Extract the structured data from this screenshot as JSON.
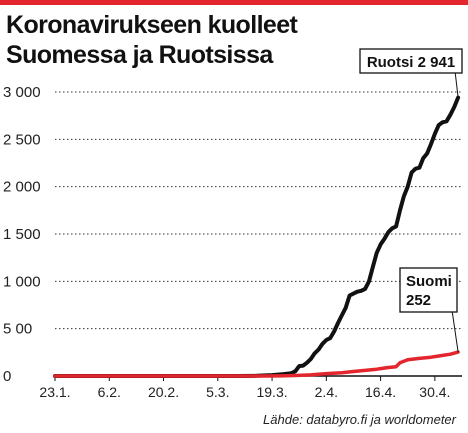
{
  "title_lines": [
    "Koronavirukseen kuolleet",
    "Suomessa ja Ruotsissa"
  ],
  "source": "Lähde: databyro.fi ja worldometer",
  "colors": {
    "accent_bar": "#e3262d"
  },
  "chart_data": {
    "type": "line",
    "title": "Koronavirukseen kuolleet Suomessa ja Ruotsissa",
    "xlabel": "",
    "ylabel": "",
    "ylim": [
      0,
      3000
    ],
    "y_ticks": [
      0,
      500,
      1000,
      1500,
      2000,
      2500,
      3000
    ],
    "y_tick_labels": [
      "0",
      "5 00",
      "1 000",
      "1 500",
      "2 000",
      "2 500",
      "3 000"
    ],
    "x_tick_labels": [
      "23.1.",
      "6.2.",
      "20.2.",
      "5.3.",
      "19.3.",
      "2.4.",
      "16.4.",
      "30.4."
    ],
    "x_tick_dates": [
      "2020-01-23",
      "2020-02-06",
      "2020-02-20",
      "2020-03-05",
      "2020-03-19",
      "2020-04-02",
      "2020-04-16",
      "2020-04-30"
    ],
    "xlim": [
      "2020-01-23",
      "2020-05-07"
    ],
    "grid": "horizontal dotted",
    "series": [
      {
        "name": "Ruotsi",
        "color": "#111111",
        "end_label": "Ruotsi 2 941",
        "points": [
          [
            "2020-01-23",
            0
          ],
          [
            "2020-03-10",
            0
          ],
          [
            "2020-03-15",
            2
          ],
          [
            "2020-03-19",
            10
          ],
          [
            "2020-03-22",
            20
          ],
          [
            "2020-03-24",
            30
          ],
          [
            "2020-03-25",
            50
          ],
          [
            "2020-03-26",
            105
          ],
          [
            "2020-03-27",
            110
          ],
          [
            "2020-03-28",
            140
          ],
          [
            "2020-03-29",
            180
          ],
          [
            "2020-03-30",
            240
          ],
          [
            "2020-03-31",
            280
          ],
          [
            "2020-04-01",
            340
          ],
          [
            "2020-04-02",
            380
          ],
          [
            "2020-04-03",
            400
          ],
          [
            "2020-04-04",
            470
          ],
          [
            "2020-04-05",
            560
          ],
          [
            "2020-04-06",
            640
          ],
          [
            "2020-04-07",
            720
          ],
          [
            "2020-04-08",
            850
          ],
          [
            "2020-04-09",
            870
          ],
          [
            "2020-04-10",
            890
          ],
          [
            "2020-04-11",
            900
          ],
          [
            "2020-04-12",
            920
          ],
          [
            "2020-04-13",
            1000
          ],
          [
            "2020-04-14",
            1150
          ],
          [
            "2020-04-15",
            1300
          ],
          [
            "2020-04-16",
            1390
          ],
          [
            "2020-04-17",
            1450
          ],
          [
            "2020-04-18",
            1520
          ],
          [
            "2020-04-19",
            1560
          ],
          [
            "2020-04-20",
            1580
          ],
          [
            "2020-04-21",
            1750
          ],
          [
            "2020-04-22",
            1900
          ],
          [
            "2020-04-23",
            2000
          ],
          [
            "2020-04-24",
            2150
          ],
          [
            "2020-04-25",
            2190
          ],
          [
            "2020-04-26",
            2200
          ],
          [
            "2020-04-27",
            2300
          ],
          [
            "2020-04-28",
            2350
          ],
          [
            "2020-04-29",
            2450
          ],
          [
            "2020-04-30",
            2560
          ],
          [
            "2020-05-01",
            2650
          ],
          [
            "2020-05-02",
            2680
          ],
          [
            "2020-05-03",
            2690
          ],
          [
            "2020-05-04",
            2760
          ],
          [
            "2020-05-05",
            2840
          ],
          [
            "2020-05-06",
            2941
          ]
        ]
      },
      {
        "name": "Suomi",
        "color": "#e3262d",
        "end_label_lines": [
          "Suomi",
          "252"
        ],
        "points": [
          [
            "2020-01-23",
            0
          ],
          [
            "2020-03-18",
            0
          ],
          [
            "2020-03-21",
            1
          ],
          [
            "2020-03-25",
            5
          ],
          [
            "2020-03-29",
            12
          ],
          [
            "2020-04-02",
            25
          ],
          [
            "2020-04-06",
            34
          ],
          [
            "2020-04-09",
            48
          ],
          [
            "2020-04-12",
            59
          ],
          [
            "2020-04-15",
            72
          ],
          [
            "2020-04-18",
            90
          ],
          [
            "2020-04-20",
            98
          ],
          [
            "2020-04-21",
            141
          ],
          [
            "2020-04-23",
            172
          ],
          [
            "2020-04-26",
            186
          ],
          [
            "2020-04-29",
            199
          ],
          [
            "2020-05-01",
            211
          ],
          [
            "2020-05-04",
            230
          ],
          [
            "2020-05-06",
            252
          ]
        ]
      }
    ]
  }
}
